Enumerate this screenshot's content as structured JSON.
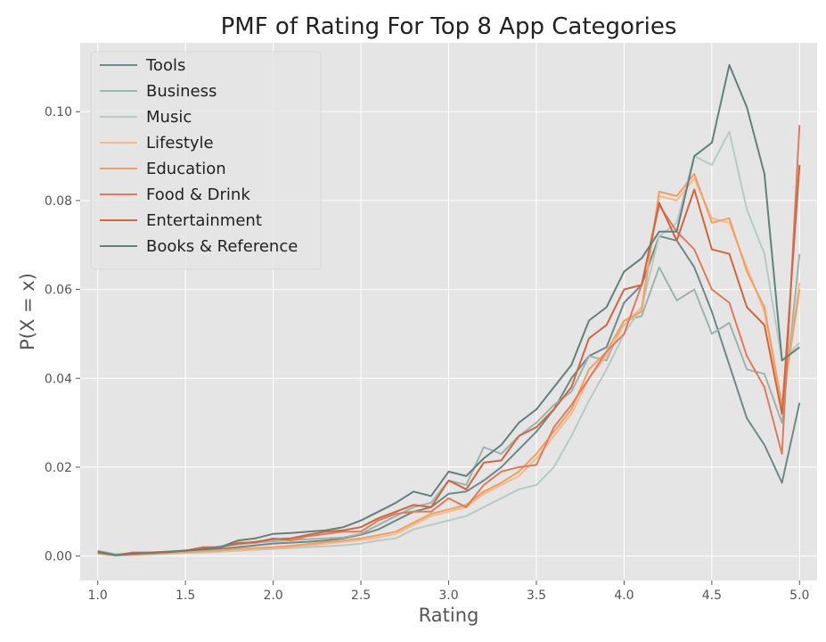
{
  "chart_data": {
    "type": "line",
    "title": "PMF of Rating For Top 8 App Categories",
    "xlabel": "Rating",
    "ylabel": "P(X = x)",
    "xlim": [
      0.9,
      5.1
    ],
    "ylim": [
      -0.0055,
      0.1155
    ],
    "xticks": [
      1.0,
      1.5,
      2.0,
      2.5,
      3.0,
      3.5,
      4.0,
      4.5,
      5.0
    ],
    "xtick_labels": [
      "1.0",
      "1.5",
      "2.0",
      "2.5",
      "3.0",
      "3.5",
      "4.0",
      "4.5",
      "5.0"
    ],
    "yticks": [
      0.0,
      0.02,
      0.04,
      0.06,
      0.08,
      0.1
    ],
    "ytick_labels": [
      "0.00",
      "0.02",
      "0.04",
      "0.06",
      "0.08",
      "0.10"
    ],
    "grid": true,
    "legend_position": "top-left",
    "x": [
      1.0,
      1.1,
      1.2,
      1.3,
      1.4,
      1.5,
      1.6,
      1.7,
      1.8,
      1.9,
      2.0,
      2.1,
      2.2,
      2.3,
      2.4,
      2.5,
      2.6,
      2.7,
      2.8,
      2.9,
      3.0,
      3.1,
      3.2,
      3.3,
      3.4,
      3.5,
      3.6,
      3.7,
      3.8,
      3.9,
      4.0,
      4.1,
      4.2,
      4.3,
      4.4,
      4.5,
      4.6,
      4.7,
      4.8,
      4.9,
      5.0
    ],
    "series": [
      {
        "name": "Tools",
        "color": "#6e8a86",
        "values": [
          0.0008,
          0.0002,
          0.0004,
          0.0005,
          0.0008,
          0.001,
          0.0012,
          0.0016,
          0.002,
          0.0024,
          0.0028,
          0.003,
          0.0032,
          0.0035,
          0.004,
          0.0048,
          0.006,
          0.008,
          0.01,
          0.011,
          0.014,
          0.0145,
          0.017,
          0.02,
          0.024,
          0.028,
          0.033,
          0.04,
          0.045,
          0.047,
          0.057,
          0.061,
          0.072,
          0.071,
          0.065,
          0.055,
          0.043,
          0.031,
          0.025,
          0.0165,
          0.0345
        ]
      },
      {
        "name": "Business",
        "color": "#9db4ae",
        "values": [
          0.0012,
          0.0004,
          0.0005,
          0.0007,
          0.001,
          0.0013,
          0.0016,
          0.0022,
          0.0026,
          0.003,
          0.0033,
          0.0036,
          0.0038,
          0.004,
          0.0042,
          0.005,
          0.007,
          0.009,
          0.011,
          0.012,
          0.017,
          0.016,
          0.0245,
          0.023,
          0.027,
          0.03,
          0.034,
          0.037,
          0.045,
          0.044,
          0.053,
          0.054,
          0.065,
          0.0575,
          0.06,
          0.05,
          0.0525,
          0.042,
          0.041,
          0.03,
          0.068
        ]
      },
      {
        "name": "Music",
        "color": "#b8cac6",
        "values": [
          0.0005,
          0.0001,
          0.0002,
          0.0003,
          0.0005,
          0.0007,
          0.0008,
          0.001,
          0.0012,
          0.0014,
          0.0016,
          0.0018,
          0.002,
          0.0022,
          0.0024,
          0.0028,
          0.0035,
          0.004,
          0.006,
          0.007,
          0.008,
          0.009,
          0.011,
          0.013,
          0.015,
          0.016,
          0.02,
          0.027,
          0.035,
          0.042,
          0.05,
          0.056,
          0.072,
          0.075,
          0.09,
          0.088,
          0.0955,
          0.078,
          0.068,
          0.044,
          0.048
        ]
      },
      {
        "name": "Lifestyle",
        "color": "#f7b98a",
        "values": [
          0.0006,
          0.0002,
          0.0003,
          0.0004,
          0.0006,
          0.0008,
          0.001,
          0.0012,
          0.0014,
          0.0016,
          0.0018,
          0.002,
          0.0024,
          0.0028,
          0.0032,
          0.0036,
          0.0042,
          0.005,
          0.007,
          0.009,
          0.01,
          0.011,
          0.014,
          0.016,
          0.018,
          0.022,
          0.027,
          0.032,
          0.04,
          0.045,
          0.052,
          0.056,
          0.081,
          0.08,
          0.085,
          0.076,
          0.075,
          0.065,
          0.055,
          0.033,
          0.0615
        ]
      },
      {
        "name": "Education",
        "color": "#f0a060",
        "values": [
          0.0006,
          0.0002,
          0.0003,
          0.0005,
          0.0007,
          0.0009,
          0.0011,
          0.0013,
          0.0016,
          0.0018,
          0.002,
          0.0023,
          0.0027,
          0.0031,
          0.0035,
          0.004,
          0.0047,
          0.0055,
          0.0075,
          0.0095,
          0.0105,
          0.0115,
          0.0145,
          0.0165,
          0.019,
          0.023,
          0.028,
          0.033,
          0.042,
          0.046,
          0.053,
          0.055,
          0.082,
          0.081,
          0.086,
          0.075,
          0.076,
          0.064,
          0.056,
          0.034,
          0.06
        ]
      },
      {
        "name": "Food & Drink",
        "color": "#e07b5b",
        "values": [
          0.001,
          0.0002,
          0.0008,
          0.0008,
          0.0009,
          0.0012,
          0.002,
          0.002,
          0.003,
          0.003,
          0.004,
          0.0035,
          0.0045,
          0.005,
          0.0055,
          0.0055,
          0.008,
          0.0095,
          0.01,
          0.01,
          0.013,
          0.011,
          0.016,
          0.019,
          0.02,
          0.0205,
          0.029,
          0.034,
          0.04,
          0.046,
          0.05,
          0.061,
          0.079,
          0.073,
          0.069,
          0.06,
          0.057,
          0.045,
          0.038,
          0.023,
          0.097
        ]
      },
      {
        "name": "Entertainment",
        "color": "#d0663e",
        "values": [
          0.0008,
          0.0002,
          0.0007,
          0.0008,
          0.001,
          0.0012,
          0.0018,
          0.002,
          0.0028,
          0.0032,
          0.0038,
          0.004,
          0.0048,
          0.0055,
          0.0058,
          0.0065,
          0.0085,
          0.01,
          0.0115,
          0.011,
          0.017,
          0.015,
          0.021,
          0.0215,
          0.027,
          0.029,
          0.033,
          0.038,
          0.049,
          0.052,
          0.06,
          0.061,
          0.0795,
          0.071,
          0.0825,
          0.069,
          0.068,
          0.056,
          0.052,
          0.032,
          0.088
        ]
      },
      {
        "name": "Books & Reference",
        "color": "#63807b",
        "values": [
          0.001,
          0.0002,
          0.0005,
          0.0007,
          0.0009,
          0.0012,
          0.0015,
          0.002,
          0.0035,
          0.004,
          0.005,
          0.0052,
          0.0055,
          0.0058,
          0.0065,
          0.008,
          0.01,
          0.012,
          0.0145,
          0.0135,
          0.019,
          0.018,
          0.022,
          0.025,
          0.03,
          0.033,
          0.038,
          0.043,
          0.053,
          0.056,
          0.064,
          0.067,
          0.073,
          0.073,
          0.09,
          0.093,
          0.1105,
          0.101,
          0.086,
          0.044,
          0.047
        ]
      }
    ]
  }
}
